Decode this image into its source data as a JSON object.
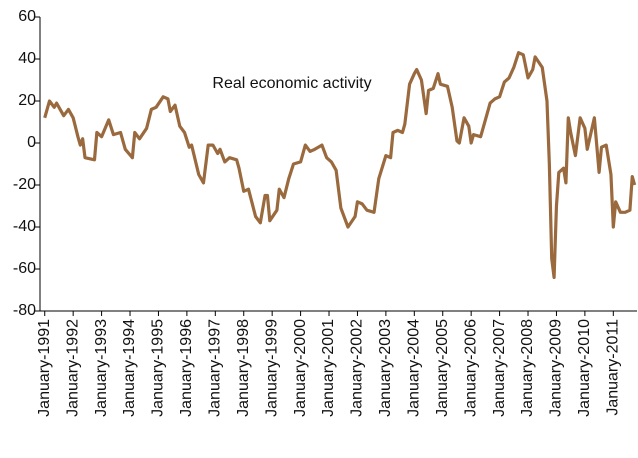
{
  "chart_data": {
    "type": "line",
    "annotation": "Real economic activity",
    "x": [
      "1991-01",
      "1991-03",
      "1991-05",
      "1991-06",
      "1991-09",
      "1991-11",
      "1992-01",
      "1992-03",
      "1992-04",
      "1992-05",
      "1992-06",
      "1992-10",
      "1992-11",
      "1993-01",
      "1993-04",
      "1993-06",
      "1993-09",
      "1993-11",
      "1994-02",
      "1994-03",
      "1994-05",
      "1994-08",
      "1994-10",
      "1994-12",
      "1995-03",
      "1995-05",
      "1995-06",
      "1995-08",
      "1995-10",
      "1995-12",
      "1996-02",
      "1996-03",
      "1996-06",
      "1996-08",
      "1996-10",
      "1996-12",
      "1997-02",
      "1997-03",
      "1997-05",
      "1997-07",
      "1997-10",
      "1997-11",
      "1998-01",
      "1998-03",
      "1998-06",
      "1998-08",
      "1998-10",
      "1998-11",
      "1998-12",
      "1999-03",
      "1999-04",
      "1999-06",
      "1999-08",
      "1999-10",
      "2000-01",
      "2000-03",
      "2000-05",
      "2000-07",
      "2000-10",
      "2000-12",
      "2001-02",
      "2001-04",
      "2001-06",
      "2001-09",
      "2001-12",
      "2002-01",
      "2002-03",
      "2002-05",
      "2002-08",
      "2002-10",
      "2003-01",
      "2003-03",
      "2003-04",
      "2003-06",
      "2003-08",
      "2003-09",
      "2003-11",
      "2004-01",
      "2004-02",
      "2004-04",
      "2004-06",
      "2004-07",
      "2004-09",
      "2004-11",
      "2004-12",
      "2005-03",
      "2005-05",
      "2005-07",
      "2005-08",
      "2005-10",
      "2005-12",
      "2006-01",
      "2006-02",
      "2006-05",
      "2006-07",
      "2006-09",
      "2006-11",
      "2007-01",
      "2007-03",
      "2007-05",
      "2007-07",
      "2007-09",
      "2007-11",
      "2008-01",
      "2008-03",
      "2008-04",
      "2008-07",
      "2008-09",
      "2008-10",
      "2008-11",
      "2008-12",
      "2009-01",
      "2009-02",
      "2009-04",
      "2009-05",
      "2009-06",
      "2009-07",
      "2009-09",
      "2009-11",
      "2010-01",
      "2010-02",
      "2010-03",
      "2010-05",
      "2010-07",
      "2010-08",
      "2010-10",
      "2010-12",
      "2011-01",
      "2011-02",
      "2011-04",
      "2011-06",
      "2011-08",
      "2011-09",
      "2011-10"
    ],
    "series": [
      {
        "color": "#9a6a3e",
        "values": [
          12,
          20,
          17,
          19,
          13,
          16,
          12,
          3,
          -1,
          2,
          -7,
          -8,
          5,
          3,
          11,
          4,
          5,
          -3,
          -7,
          5,
          2,
          7,
          16,
          17,
          22,
          21,
          15,
          18,
          8,
          5,
          -2,
          -1,
          -15,
          -19,
          -1,
          -1,
          -5,
          -3,
          -9,
          -7,
          -8,
          -12,
          -23,
          -22,
          -35,
          -38,
          -25,
          -25,
          -37,
          -32,
          -22,
          -26,
          -17,
          -10,
          -9,
          -1,
          -4,
          -3,
          -1,
          -7,
          -9,
          -13,
          -31,
          -40,
          -35,
          -28,
          -29,
          -32,
          -33,
          -17,
          -6,
          -7,
          5,
          6,
          5,
          9,
          28,
          33,
          35,
          30,
          14,
          25,
          26,
          33,
          28,
          27,
          17,
          1,
          0,
          12,
          8,
          0,
          4,
          3,
          11,
          19,
          21,
          22,
          29,
          31,
          36,
          43,
          42,
          31,
          35,
          41,
          36,
          20,
          -10,
          -55,
          -64,
          -30,
          -14,
          -12,
          -19,
          12,
          5,
          -6,
          12,
          7,
          -3,
          2,
          12,
          -14,
          -2,
          -1,
          -15,
          -40,
          -28,
          -33,
          -33,
          -32,
          -16,
          -20
        ]
      }
    ],
    "xlim": [
      "1990-11",
      "2011-11"
    ],
    "xticks": [
      {
        "value": "1991-01",
        "label": "January-1991"
      },
      {
        "value": "1992-01",
        "label": "January-1992"
      },
      {
        "value": "1993-01",
        "label": "January-1993"
      },
      {
        "value": "1994-01",
        "label": "January-1994"
      },
      {
        "value": "1995-01",
        "label": "January-1995"
      },
      {
        "value": "1996-01",
        "label": "January-1996"
      },
      {
        "value": "1997-01",
        "label": "January-1997"
      },
      {
        "value": "1998-01",
        "label": "January-1998"
      },
      {
        "value": "1999-01",
        "label": "January-1999"
      },
      {
        "value": "2000-01",
        "label": "January-2000"
      },
      {
        "value": "2001-01",
        "label": "January-2001"
      },
      {
        "value": "2002-01",
        "label": "January-2002"
      },
      {
        "value": "2003-01",
        "label": "January-2003"
      },
      {
        "value": "2004-01",
        "label": "January-2004"
      },
      {
        "value": "2005-01",
        "label": "January-2005"
      },
      {
        "value": "2006-01",
        "label": "January-2006"
      },
      {
        "value": "2007-01",
        "label": "January-2007"
      },
      {
        "value": "2008-01",
        "label": "January-2008"
      },
      {
        "value": "2009-01",
        "label": "January-2009"
      },
      {
        "value": "2010-01",
        "label": "January-2010"
      },
      {
        "value": "2011-01",
        "label": "January-2011"
      }
    ],
    "ylim": [
      -80,
      60
    ],
    "yticks": [
      -80,
      -60,
      -40,
      -20,
      0,
      20,
      40,
      60
    ],
    "grid": false
  }
}
